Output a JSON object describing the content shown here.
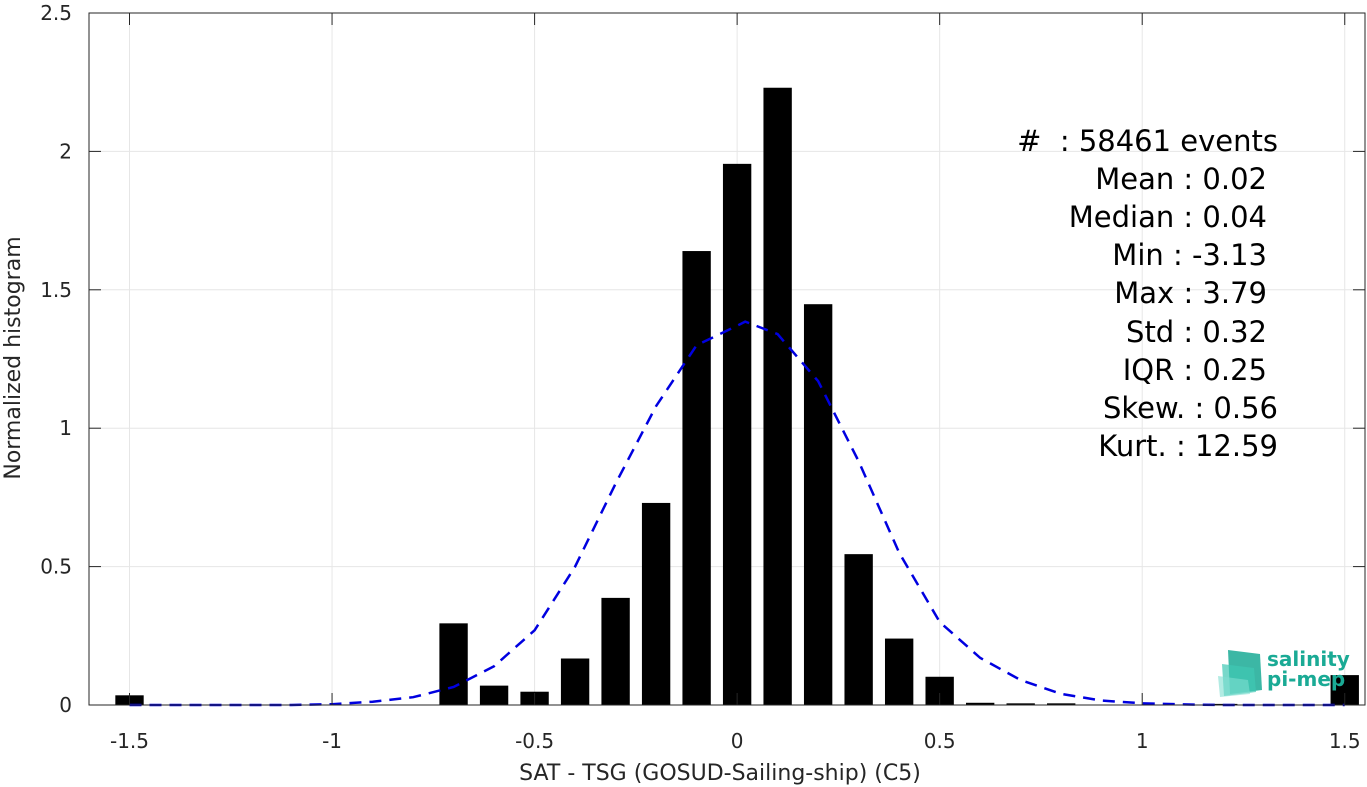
{
  "chart_data": {
    "type": "bar",
    "xlabel": "SAT - TSG (GOSUD-Sailing-ship) (C5)",
    "ylabel": "Normalized histogram",
    "xlim": [
      -1.6,
      1.55
    ],
    "ylim": [
      0,
      2.5
    ],
    "xticks": [
      "-1.5",
      "-1",
      "-0.5",
      "0",
      "0.5",
      "1",
      "1.5"
    ],
    "xtick_values": [
      -1.5,
      -1,
      -0.5,
      0,
      0.5,
      1,
      1.5
    ],
    "yticks": [
      "0",
      "0.5",
      "1",
      "1.5",
      "2",
      "2.5"
    ],
    "ytick_values": [
      0,
      0.5,
      1,
      1.5,
      2,
      2.5
    ],
    "grid": true,
    "bar_color": "#000000",
    "bar_width": 0.07,
    "bars": {
      "x": [
        -1.5,
        -0.7,
        -0.6,
        -0.5,
        -0.4,
        -0.3,
        -0.2,
        -0.1,
        0.0,
        0.1,
        0.2,
        0.3,
        0.4,
        0.5,
        0.6,
        0.7,
        0.8,
        1.2,
        1.5
      ],
      "values": [
        0.035,
        0.295,
        0.07,
        0.048,
        0.168,
        0.387,
        0.73,
        1.64,
        1.955,
        2.23,
        1.448,
        0.545,
        0.24,
        0.102,
        0.008,
        0.006,
        0.006,
        0.004,
        0.108
      ]
    },
    "fit_line": {
      "style": "dashed",
      "color": "#0000e0",
      "x": [
        -1.5,
        -1.4,
        -1.3,
        -1.2,
        -1.1,
        -1.0,
        -0.9,
        -0.8,
        -0.7,
        -0.6,
        -0.5,
        -0.4,
        -0.3,
        -0.2,
        -0.1,
        0.0,
        0.02,
        0.1,
        0.2,
        0.3,
        0.4,
        0.5,
        0.6,
        0.7,
        0.8,
        0.9,
        1.0,
        1.1,
        1.2,
        1.3,
        1.4,
        1.5
      ],
      "y": [
        0.0,
        0.0,
        0.0,
        0.0,
        0.0,
        0.003,
        0.012,
        0.028,
        0.065,
        0.14,
        0.27,
        0.5,
        0.8,
        1.08,
        1.3,
        1.37,
        1.385,
        1.34,
        1.17,
        0.88,
        0.55,
        0.3,
        0.17,
        0.09,
        0.04,
        0.016,
        0.006,
        0.002,
        0.0,
        0.0,
        0.0,
        0.0
      ]
    },
    "stats_box": [
      "#  : 58461 events",
      "Mean : 0.02",
      "Median : 0.04",
      "Min : -3.13",
      "Max : 3.79",
      "Std : 0.32",
      "IQR : 0.25",
      "Skew. : 0.56",
      "Kurt. : 12.59"
    ]
  },
  "logo": {
    "line1": "salinity",
    "line2": "pi-mep",
    "color": "#1aaa95"
  }
}
